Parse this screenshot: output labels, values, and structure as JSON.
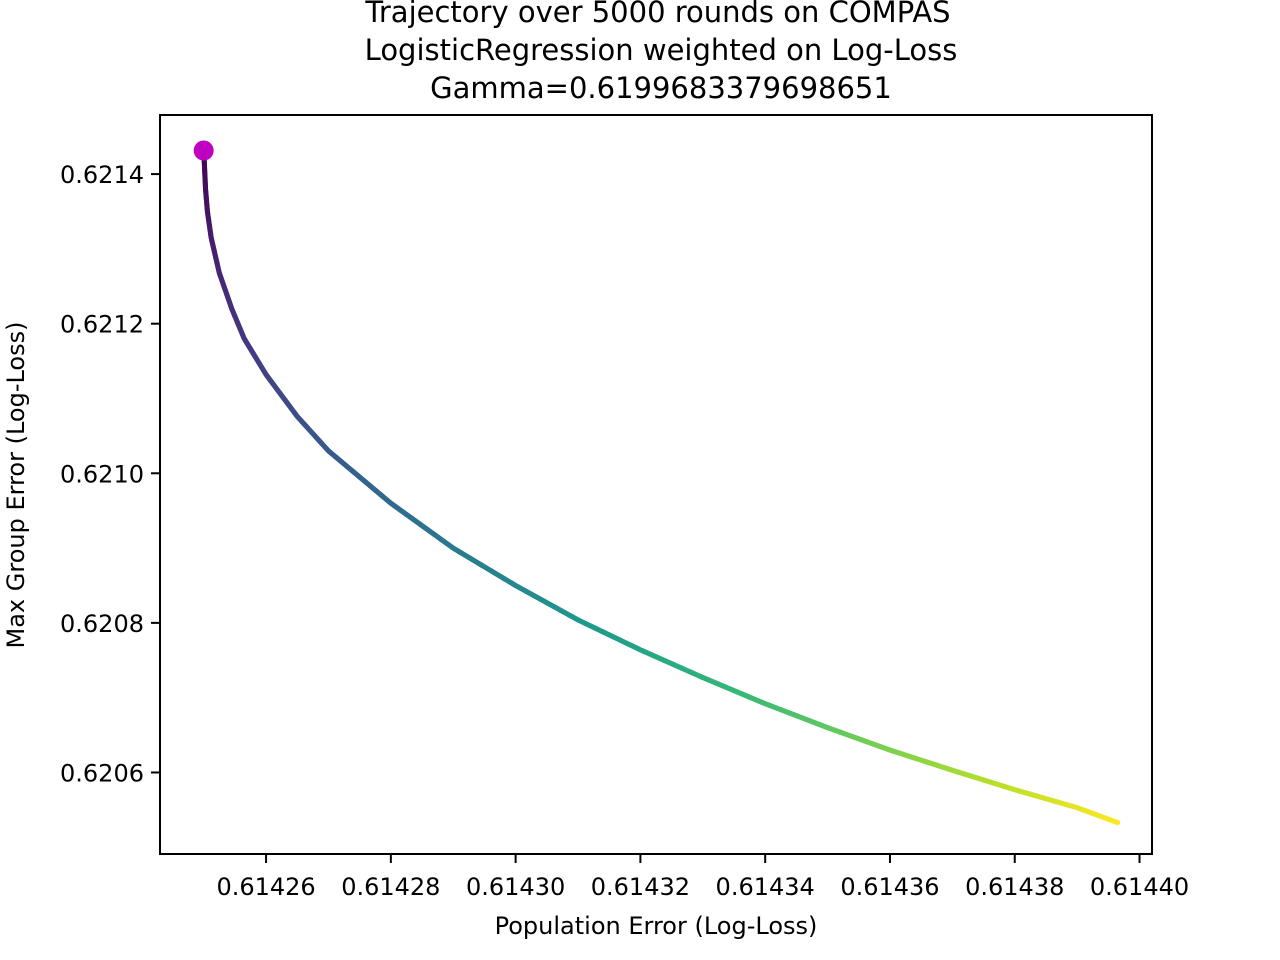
{
  "chart_data": {
    "type": "scatter",
    "title_lines": [
      "Trajectory over 5000 rounds on COMPAS",
      "LogisticRegression weighted on Log-Loss",
      "Gamma=0.6199683379698651"
    ],
    "xlabel": "Population Error (Log-Loss)",
    "ylabel": "Max Group Error (Log-Loss)",
    "xlim": [
      0.614243,
      0.614402
    ],
    "ylim": [
      0.620491,
      0.621479
    ],
    "x_ticks": [
      0.61426,
      0.61428,
      0.6143,
      0.61432,
      0.61434,
      0.61436,
      0.61438,
      0.6144
    ],
    "x_tick_labels": [
      "0.61426",
      "0.61428",
      "0.61430",
      "0.61432",
      "0.61434",
      "0.61436",
      "0.61438",
      "0.61440"
    ],
    "y_ticks": [
      0.6206,
      0.6208,
      0.621,
      0.6212,
      0.6214
    ],
    "y_tick_labels": [
      "0.6206",
      "0.6208",
      "0.6210",
      "0.6212",
      "0.6214"
    ],
    "grid": false,
    "colormap": "viridis",
    "start_marker_color": "#c000c0",
    "series": [
      {
        "x": [
          0.61425,
          0.6142501,
          0.6142503,
          0.6142506,
          0.6142512,
          0.6142525,
          0.6142545,
          0.6142565,
          0.61426,
          0.614265,
          0.61427,
          0.61428,
          0.61429,
          0.6143,
          0.61431,
          0.61432,
          0.61433,
          0.61434,
          0.61435,
          0.61436,
          0.61437,
          0.61438,
          0.61439,
          0.6143965
        ],
        "y": [
          0.6214315,
          0.621416,
          0.62138,
          0.62135,
          0.621315,
          0.621268,
          0.62122,
          0.62118,
          0.621132,
          0.621076,
          0.62103,
          0.62096,
          0.6209,
          0.62085,
          0.620804,
          0.620764,
          0.620727,
          0.620692,
          0.62066,
          0.62063,
          0.620603,
          0.620577,
          0.620553,
          0.620533
        ]
      }
    ],
    "start_point": {
      "x": 0.61425,
      "y": 0.6214315
    }
  }
}
